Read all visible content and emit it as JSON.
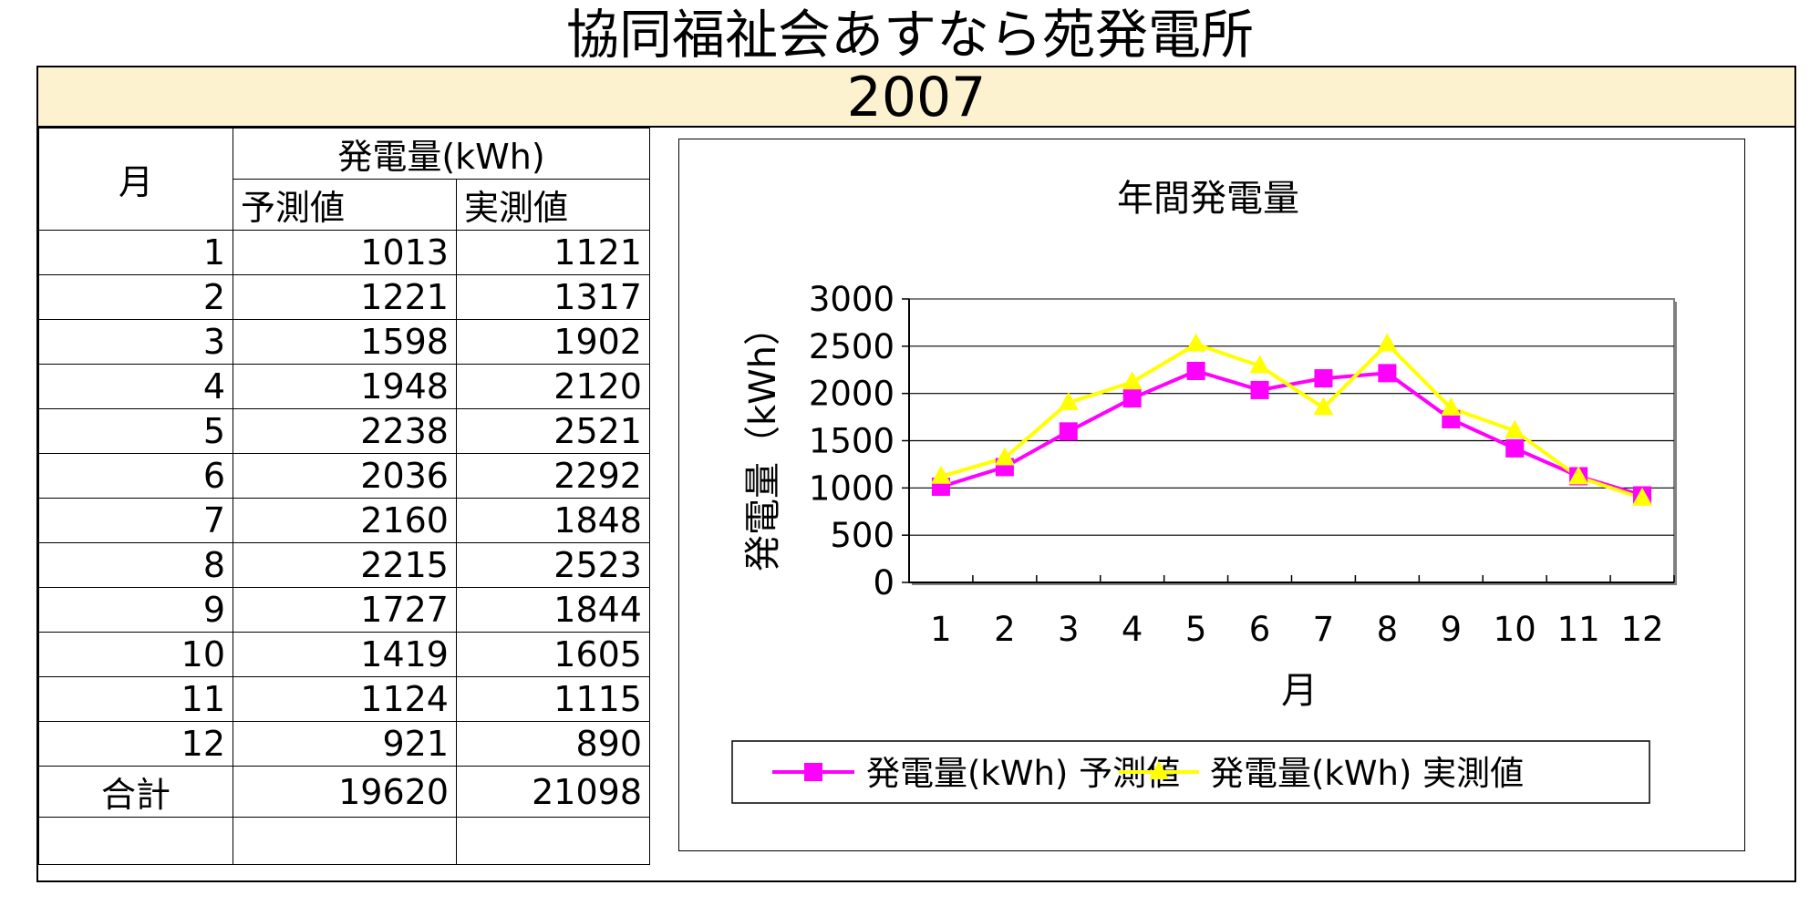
{
  "page_title": "協同福祉会あすなら苑発電所",
  "year": "2007",
  "table": {
    "col_month": "月",
    "col_group": "発電量(kWh)",
    "col_forecast": "予測値",
    "col_actual": "実測値",
    "rows": [
      {
        "month": "1",
        "forecast": "1013",
        "actual": "1121"
      },
      {
        "month": "2",
        "forecast": "1221",
        "actual": "1317"
      },
      {
        "month": "3",
        "forecast": "1598",
        "actual": "1902"
      },
      {
        "month": "4",
        "forecast": "1948",
        "actual": "2120"
      },
      {
        "month": "5",
        "forecast": "2238",
        "actual": "2521"
      },
      {
        "month": "6",
        "forecast": "2036",
        "actual": "2292"
      },
      {
        "month": "7",
        "forecast": "2160",
        "actual": "1848"
      },
      {
        "month": "8",
        "forecast": "2215",
        "actual": "2523"
      },
      {
        "month": "9",
        "forecast": "1727",
        "actual": "1844"
      },
      {
        "month": "10",
        "forecast": "1419",
        "actual": "1605"
      },
      {
        "month": "11",
        "forecast": "1124",
        "actual": "1115"
      },
      {
        "month": "12",
        "forecast": "921",
        "actual": "890"
      }
    ],
    "total_label": "合計",
    "total_forecast": "19620",
    "total_actual": "21098"
  },
  "chart_data": {
    "type": "line",
    "title": "年間発電量",
    "xlabel": "月",
    "ylabel": "発電量（kWh）",
    "categories": [
      "1",
      "2",
      "3",
      "4",
      "5",
      "6",
      "7",
      "8",
      "9",
      "10",
      "11",
      "12"
    ],
    "ylim": [
      0,
      3000
    ],
    "yticks": [
      0,
      500,
      1000,
      1500,
      2000,
      2500,
      3000
    ],
    "grid": true,
    "legend_position": "bottom",
    "series": [
      {
        "name": "発電量(kWh) 予測値",
        "marker": "square",
        "color": "#ff00ff",
        "values": [
          1013,
          1221,
          1598,
          1948,
          2238,
          2036,
          2160,
          2215,
          1727,
          1419,
          1124,
          921
        ]
      },
      {
        "name": "発電量(kWh) 実測値",
        "marker": "triangle",
        "color": "#ffff00",
        "values": [
          1121,
          1317,
          1902,
          2120,
          2521,
          2292,
          1848,
          2523,
          1844,
          1605,
          1115,
          890
        ]
      }
    ]
  }
}
